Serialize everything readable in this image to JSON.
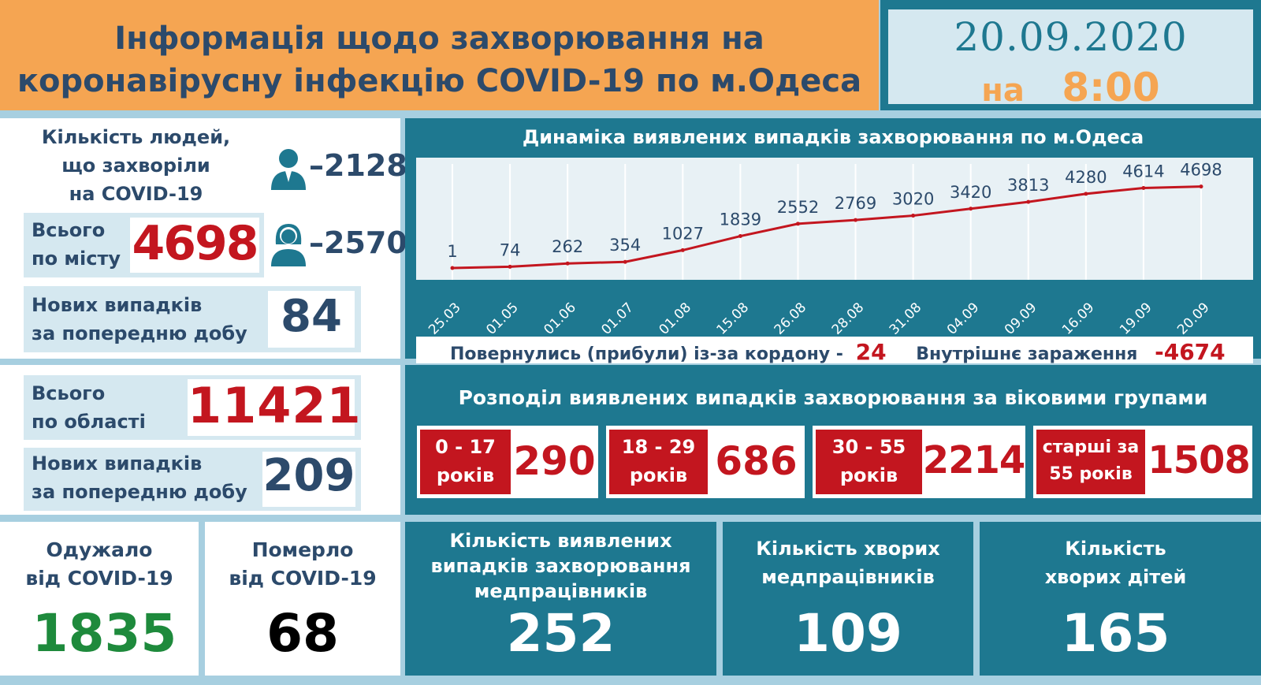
{
  "header": {
    "title_line1": "Інформація щодо захворювання на",
    "title_line2": "коронавірусну інфекцію COVID-19 по м.Одеса",
    "date": "20.09.2020",
    "time_prefix": "на",
    "time": "8:00"
  },
  "city": {
    "sick_label_line1": "Кількість людей,",
    "sick_label_line2": "що захворіли",
    "sick_label_line3": "на COVID-19",
    "men_value": "–2128",
    "women_value": "–2570",
    "total_label_line1": "Всього",
    "total_label_line2": "по місту",
    "total_value": "4698",
    "new_label_line1": "Нових випадків",
    "new_label_line2": "за попередню добу",
    "new_value": "84"
  },
  "region": {
    "total_label_line1": "Всього",
    "total_label_line2": "по області",
    "total_value": "11421",
    "new_label_line1": "Нових випадків",
    "new_label_line2": "за попередню добу",
    "new_value": "209"
  },
  "outcomes": {
    "recovered_label_line1": "Одужало",
    "recovered_label_line2": "від COVID-19",
    "recovered_value": "1835",
    "died_label_line1": "Померло",
    "died_label_line2": "від COVID-19",
    "died_value": "68"
  },
  "chart_data": {
    "type": "line",
    "title": "Динаміка виявлених випадків захворювання по м.Одеса",
    "categories": [
      "25.03",
      "01.05",
      "01.06",
      "01.07",
      "01.08",
      "15.08",
      "26.08",
      "28.08",
      "31.08",
      "04.09",
      "09.09",
      "16.09",
      "19.09",
      "20.09"
    ],
    "values": [
      1,
      74,
      262,
      354,
      1027,
      1839,
      2552,
      2769,
      3020,
      3420,
      3813,
      4280,
      4614,
      4698
    ],
    "ylim": [
      0,
      11000
    ],
    "line_color": "#c3161f",
    "grid": true
  },
  "import": {
    "returned_label": "Повернулись (прибули) із-за кордону -",
    "returned_value": "24",
    "internal_label": "Внутрішнє зараження",
    "internal_value": "-4674"
  },
  "age": {
    "title": "Розподіл виявлених випадків захворювання за віковими групами",
    "groups": [
      {
        "line1": "0 - 17",
        "line2": "років",
        "value": "290"
      },
      {
        "line1": "18 - 29",
        "line2": "років",
        "value": "686"
      },
      {
        "line1": "30 - 55",
        "line2": "років",
        "value": "2214"
      },
      {
        "line1": "старші за",
        "line2": "55 років",
        "value": "1508"
      }
    ]
  },
  "medical": {
    "cases_label_line1": "Кількість виявлених",
    "cases_label_line2": "випадків захворювання",
    "cases_label_line3": "медпрацівників",
    "cases_value": "252",
    "sick_label_line1": "Кількість хворих",
    "sick_label_line2": "медпрацівників",
    "sick_value": "109",
    "children_label_line1": "Кількість",
    "children_label_line2": "хворих дітей",
    "children_value": "165"
  },
  "colors": {
    "teal": "#1e7890",
    "orange": "#f5a552",
    "red": "#c3161f",
    "green": "#1e8a3c",
    "navy": "#2c4a6b"
  }
}
